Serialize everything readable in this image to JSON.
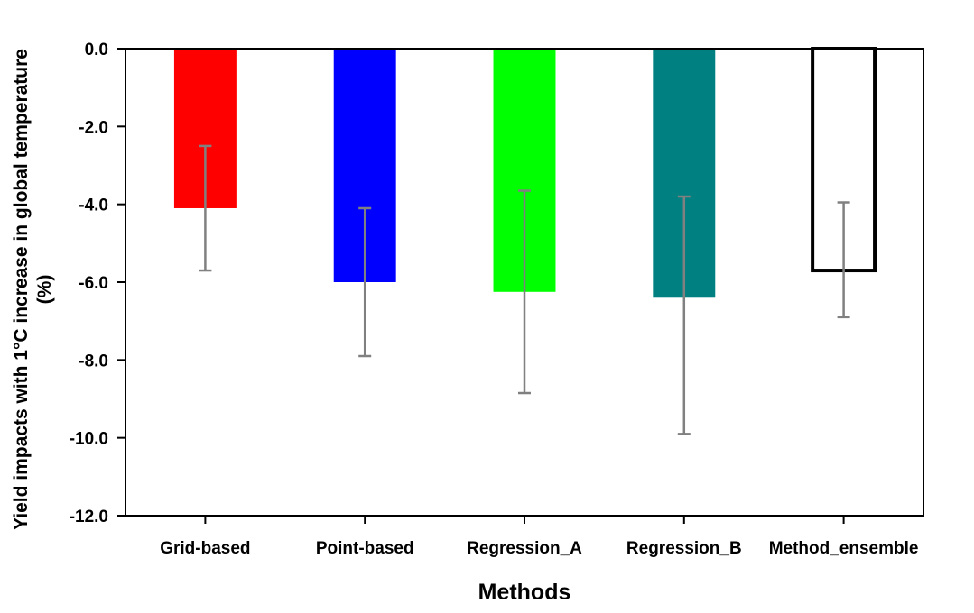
{
  "chart_data": {
    "type": "bar",
    "xlabel": "Methods",
    "ylabel": "Yield impacts with 1°C increase in global temperature",
    "ylabel_unit": "(%)",
    "categories": [
      "Grid-based",
      "Point-based",
      "Regression_A",
      "Regression_B",
      "Method_ensemble"
    ],
    "values": [
      -4.1,
      -6.0,
      -6.25,
      -6.4,
      -5.7
    ],
    "error_upper": [
      -2.5,
      -4.1,
      -3.65,
      -3.8,
      -3.95
    ],
    "error_lower": [
      -5.7,
      -7.9,
      -8.85,
      -9.9,
      -6.9
    ],
    "colors": [
      "#ff0000",
      "#0000ff",
      "#00ff00",
      "#008080",
      "#ffffff"
    ],
    "outlined": [
      false,
      false,
      false,
      false,
      true
    ],
    "error_bar_color": "#808080",
    "ylim": [
      -12,
      0
    ],
    "yticks": [
      0,
      -2,
      -4,
      -6,
      -8,
      -10,
      -12
    ],
    "ytick_labels": [
      "0.0",
      "-2.0",
      "-4.0",
      "-6.0",
      "-8.0",
      "-10.0",
      "-12.0"
    ],
    "grid": false,
    "legend": "none"
  }
}
